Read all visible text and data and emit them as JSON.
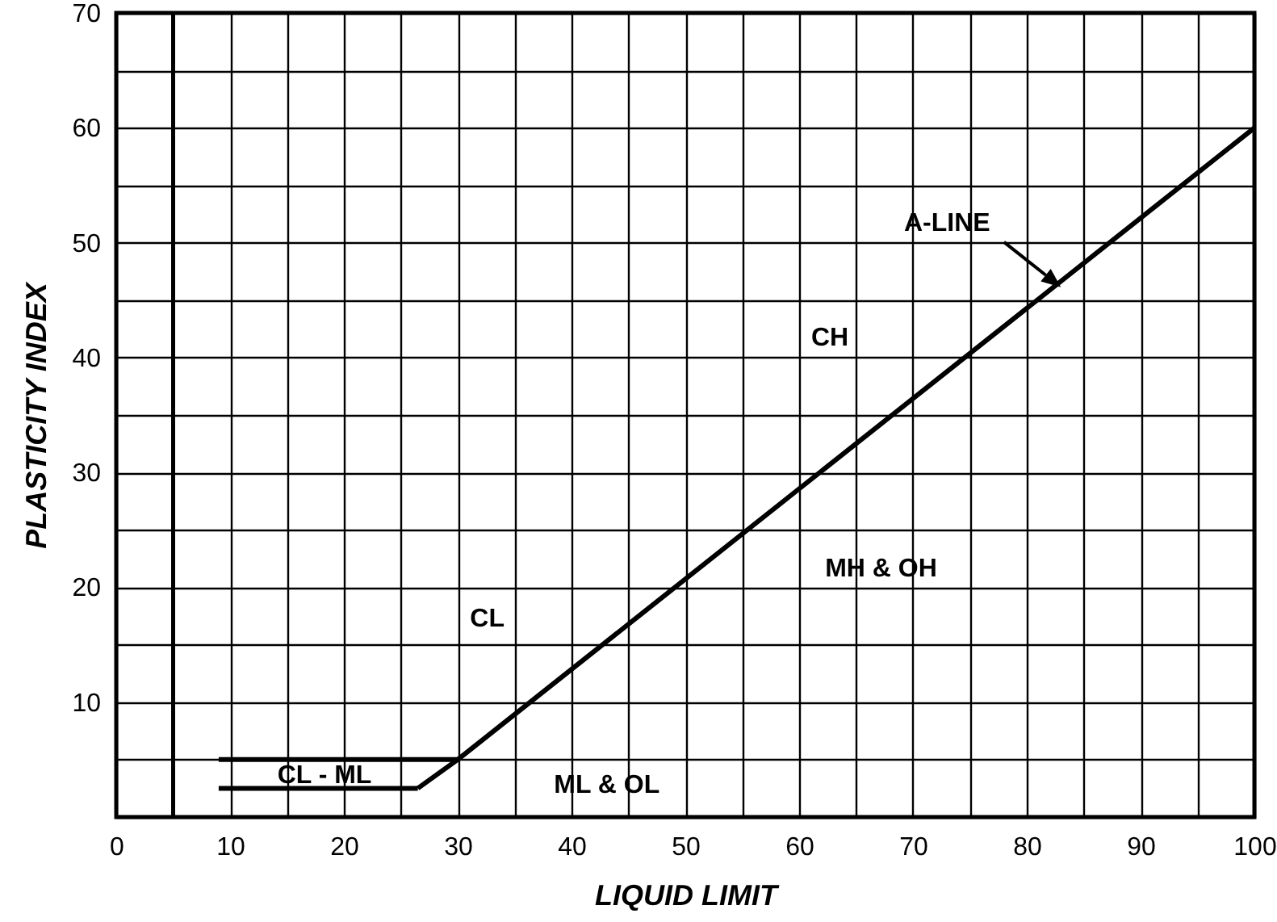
{
  "chart_data": {
    "type": "line",
    "xlabel": "LIQUID LIMIT",
    "ylabel": "PLASTICITY INDEX",
    "xlim": [
      0,
      100
    ],
    "ylim": [
      0,
      70
    ],
    "xticks": [
      0,
      {
        "value": 5,
        "label": null
      },
      10,
      {
        "value": 15,
        "label": null
      },
      20,
      {
        "value": 25,
        "label": null
      },
      30,
      {
        "value": 35,
        "label": null
      },
      40,
      {
        "value": 45,
        "label": null
      },
      50,
      {
        "value": 55,
        "label": null
      },
      60,
      {
        "value": 65,
        "label": null
      },
      70,
      {
        "value": 75,
        "label": null
      },
      80,
      {
        "value": 85,
        "label": null
      },
      90,
      {
        "value": 95,
        "label": null
      },
      100
    ],
    "yticks": [
      {
        "value": 0,
        "label": null
      },
      {
        "value": 5,
        "label": null
      },
      10,
      {
        "value": 15,
        "label": null
      },
      20,
      {
        "value": 25,
        "label": null
      },
      30,
      {
        "value": 35,
        "label": null
      },
      40,
      {
        "value": 45,
        "label": null
      },
      50,
      {
        "value": 55,
        "label": null
      },
      60,
      {
        "value": 65,
        "label": null
      },
      70
    ],
    "grid": true,
    "line_style": "solid",
    "series": [
      {
        "color": "#000000",
        "x": [
          26.5,
          30,
          100
        ],
        "values": [
          2.5,
          5,
          60
        ]
      },
      {
        "color": "#000000",
        "x": [
          9,
          30
        ],
        "values": [
          5,
          5
        ]
      },
      {
        "color": "#000000",
        "x": [
          9,
          26.5
        ],
        "values": [
          2.5,
          2.5
        ]
      }
    ],
    "ref_lines": [
      {
        "axis": "x",
        "value": 5,
        "color": "#000000"
      }
    ],
    "annotations": [
      "A-LINE",
      "CH",
      "MH & OH",
      "CL",
      "CL - ML",
      "ML & OL"
    ]
  }
}
